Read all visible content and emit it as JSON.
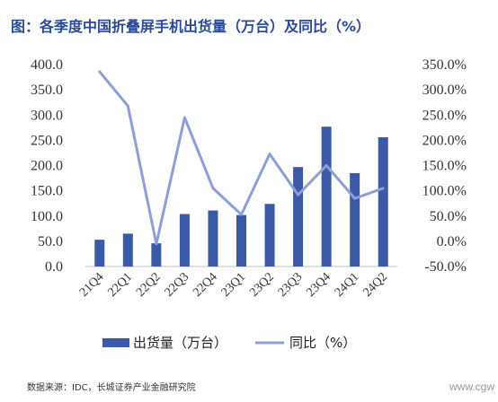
{
  "title": "图：各季度中国折叠屏手机出货量（万台）及同比（%）",
  "source": "数据来源：IDC，长城证券产业金融研究院",
  "watermark": "www.cgw",
  "colors": {
    "bar": "#3a5aa6",
    "line": "#8e9ed6",
    "title": "#2a4a9a"
  },
  "chart_data": {
    "type": "bar",
    "categories": [
      "21Q4",
      "22Q1",
      "22Q2",
      "22Q3",
      "22Q4",
      "23Q1",
      "23Q2",
      "23Q3",
      "23Q4",
      "24Q1",
      "24Q2"
    ],
    "series": [
      {
        "name": "出货量（万台）",
        "type": "bar",
        "axis": "left",
        "values": [
          53,
          65,
          46,
          104,
          111,
          102,
          124,
          197,
          277,
          185,
          256
        ]
      },
      {
        "name": "同比（%）",
        "type": "line",
        "axis": "right",
        "values": [
          336,
          268,
          -5,
          245,
          105,
          53,
          173,
          92,
          150,
          85,
          105
        ]
      }
    ],
    "y_left": {
      "min": 0,
      "max": 400,
      "step": 50,
      "ticks": [
        "0.0",
        "50.0",
        "100.0",
        "150.0",
        "200.0",
        "250.0",
        "300.0",
        "350.0",
        "400.0"
      ]
    },
    "y_right": {
      "min": -50,
      "max": 350,
      "step": 50,
      "ticks": [
        "-50.0%",
        "0.0%",
        "50.0%",
        "100.0%",
        "150.0%",
        "200.0%",
        "250.0%",
        "300.0%",
        "350.0%"
      ]
    },
    "legend": {
      "position": "bottom",
      "bar_label": "出货量（万台）",
      "line_label": "同比（%）"
    },
    "grid": false
  }
}
